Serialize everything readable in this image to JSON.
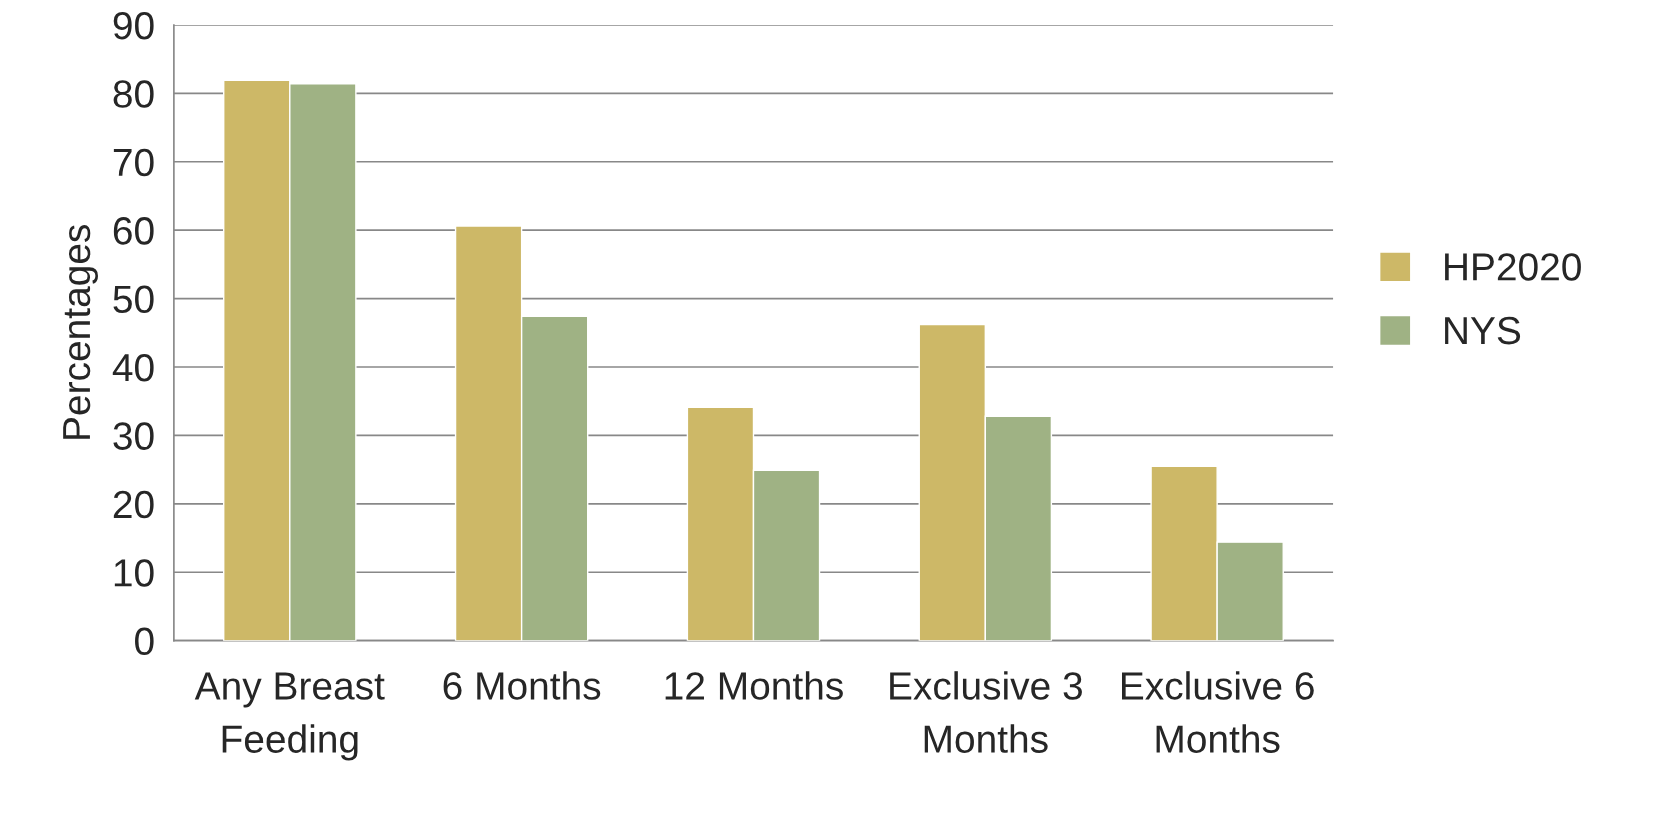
{
  "chart_data": {
    "type": "bar",
    "ylabel": "Percentages",
    "categories": [
      "Any Breast\nFeeding",
      "6 Months",
      "12 Months",
      "Exclusive 3\nMonths",
      "Exclusive 6\nMonths"
    ],
    "series": [
      {
        "name": "HP2020",
        "color": "#cdb867",
        "values": [
          81.9,
          60.6,
          34.1,
          46.2,
          25.5
        ]
      },
      {
        "name": "NYS",
        "color": "#9fb284",
        "values": [
          81.4,
          47.4,
          24.9,
          32.8,
          14.4
        ]
      }
    ],
    "ylim": [
      0,
      90
    ],
    "yticks": [
      0,
      10,
      20,
      30,
      40,
      50,
      60,
      70,
      80,
      90
    ],
    "grid": "y",
    "legend": "right"
  }
}
